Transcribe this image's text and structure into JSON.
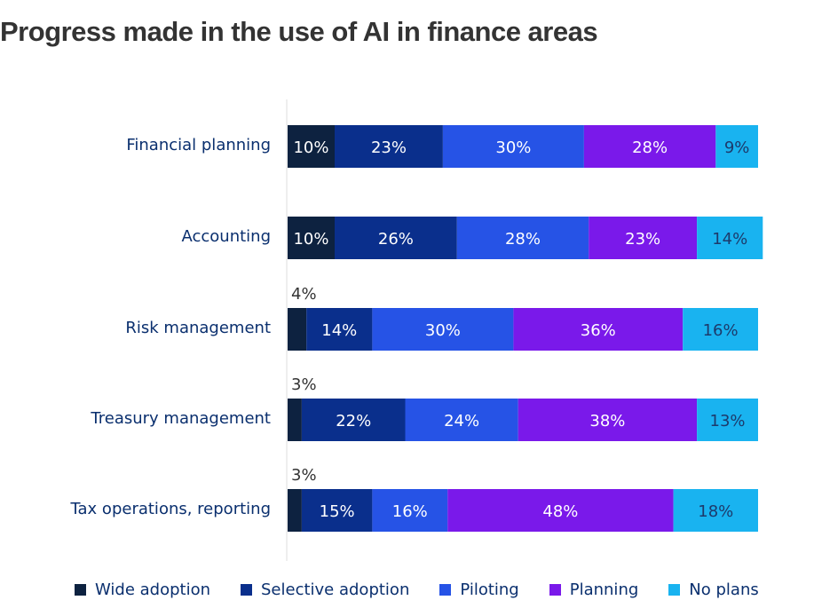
{
  "title": "Progress made in the use of AI in finance areas",
  "colors": {
    "wide_adoption": "#0d2240",
    "selective_adoption": "#0a2f8c",
    "piloting": "#2653e6",
    "planning": "#7a19ea",
    "no_plans": "#19b3f0",
    "category_text": "#0a2f6e",
    "axis_line": "#dddddd"
  },
  "chart_data": {
    "type": "bar",
    "orientation": "horizontal",
    "stacked": true,
    "categories": [
      "Financial planning",
      "Accounting",
      "Risk management",
      "Treasury management",
      "Tax operations, reporting"
    ],
    "series": [
      {
        "name": "Wide adoption",
        "values": [
          10,
          10,
          4,
          3,
          3
        ],
        "labels": [
          "10%",
          "10%",
          "4%",
          "3%",
          "3%"
        ]
      },
      {
        "name": "Selective adoption",
        "values": [
          23,
          26,
          14,
          22,
          15
        ],
        "labels": [
          "23%",
          "26%",
          "14%",
          "22%",
          "15%"
        ]
      },
      {
        "name": "Piloting",
        "values": [
          30,
          28,
          30,
          24,
          16
        ],
        "labels": [
          "30%",
          "28%",
          "30%",
          "24%",
          "16%"
        ]
      },
      {
        "name": "Planning",
        "values": [
          28,
          23,
          36,
          38,
          48
        ],
        "labels": [
          "28%",
          "23%",
          "36%",
          "38%",
          "48%"
        ]
      },
      {
        "name": "No plans",
        "values": [
          9,
          14,
          16,
          13,
          18
        ],
        "labels": [
          "9%",
          "14%",
          "16%",
          "13%",
          "18%"
        ]
      }
    ],
    "legend_position": "bottom"
  }
}
